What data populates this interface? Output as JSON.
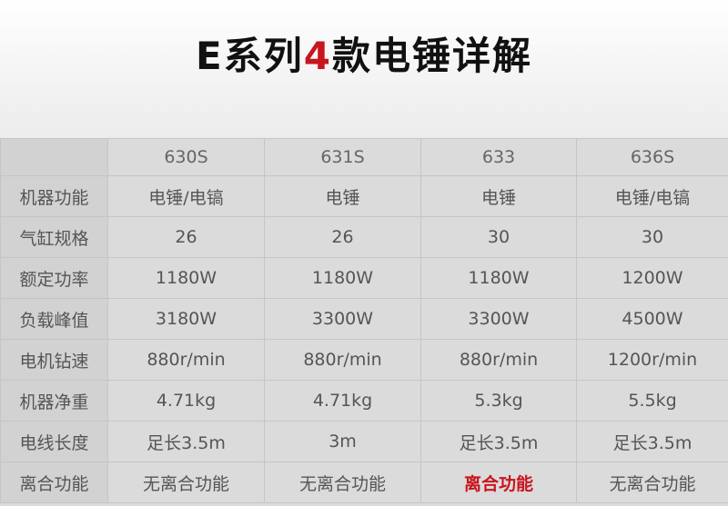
{
  "title": {
    "prefix": "E系列",
    "number": "4",
    "suffix": "款电锤详解",
    "accent_color": "#c8161e"
  },
  "table": {
    "columns": [
      "",
      "630S",
      "631S",
      "633",
      "636S"
    ],
    "rows": [
      {
        "label": "机器功能",
        "values": [
          "电锤/电镐",
          "电锤",
          "电锤",
          "电锤/电镐"
        ]
      },
      {
        "label": "气缸规格",
        "values": [
          "26",
          "26",
          "30",
          "30"
        ]
      },
      {
        "label": "额定功率",
        "values": [
          "1180W",
          "1180W",
          "1180W",
          "1200W"
        ]
      },
      {
        "label": "负载峰值",
        "values": [
          "3180W",
          "3300W",
          "3300W",
          "4500W"
        ]
      },
      {
        "label": "电机钻速",
        "values": [
          "880r/min",
          "880r/min",
          "880r/min",
          "1200r/min"
        ]
      },
      {
        "label": "机器净重",
        "values": [
          "4.71kg",
          "4.71kg",
          "5.3kg",
          "5.5kg"
        ]
      },
      {
        "label": "电线长度",
        "values": [
          "足长3.5m",
          "3m",
          "足长3.5m",
          "足长3.5m"
        ]
      },
      {
        "label": "离合功能",
        "values": [
          "无离合功能",
          "无离合功能",
          "离合功能",
          "无离合功能"
        ],
        "highlight_index": 2
      }
    ]
  }
}
